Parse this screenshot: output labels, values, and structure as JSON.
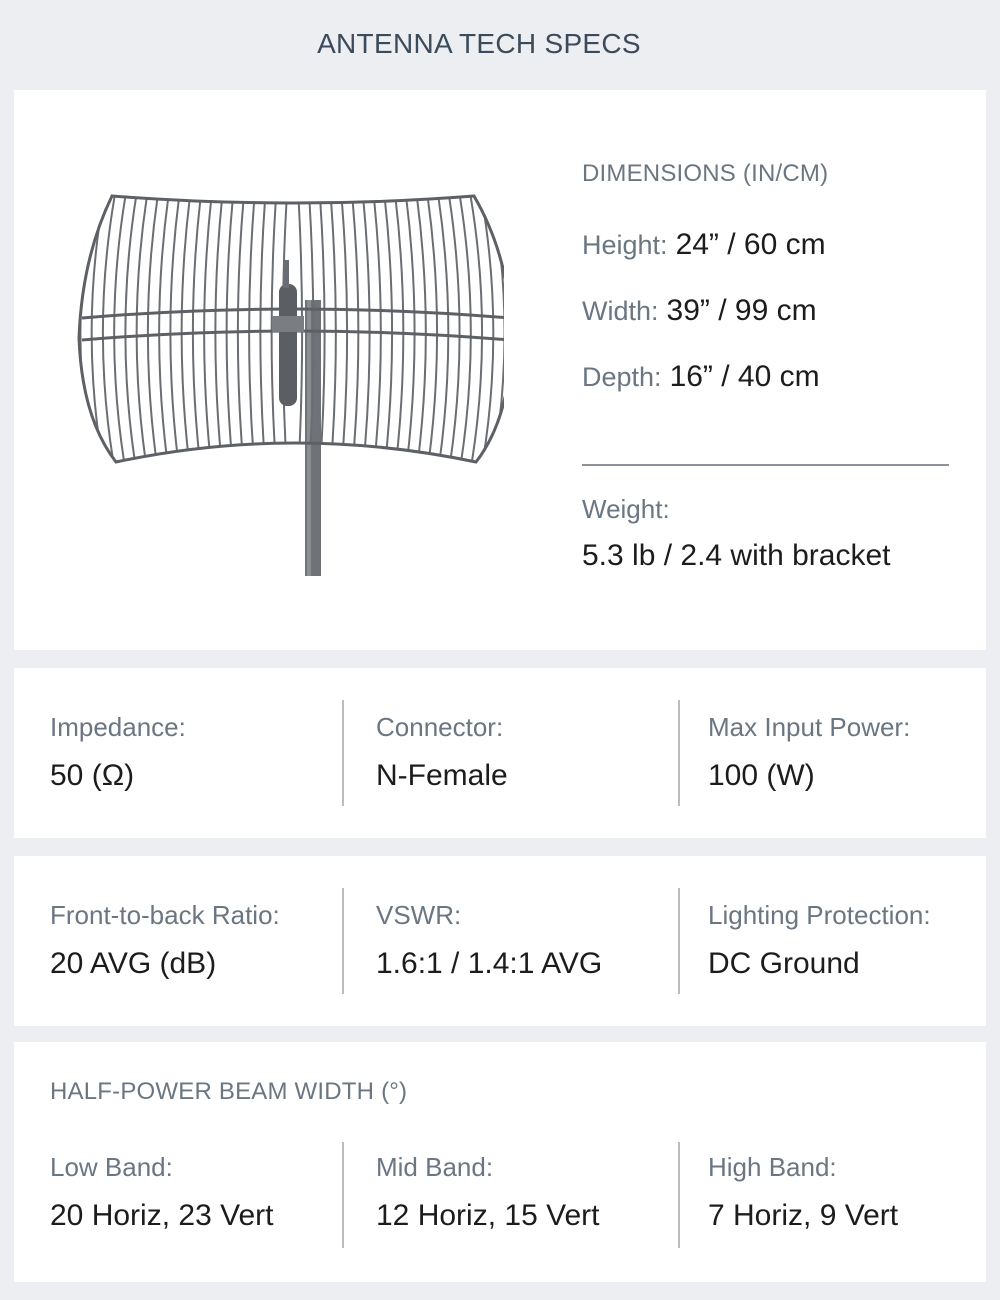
{
  "title": "ANTENNA TECH SPECS",
  "dimensions": {
    "heading": "DIMENSIONS (IN/CM)",
    "rows": [
      {
        "label": "Height:",
        "value": "24” / 60 cm"
      },
      {
        "label": "Width:",
        "value": "39” / 99 cm"
      },
      {
        "label": "Depth:",
        "value": "16” / 40 cm"
      }
    ],
    "weight_label": "Weight:",
    "weight_value": "5.3 lb / 2.4 with bracket"
  },
  "specs_row1": [
    {
      "label": "Impedance:",
      "value": "50 (Ω)"
    },
    {
      "label": "Connector:",
      "value": "N-Female"
    },
    {
      "label": "Max Input Power:",
      "value": "100 (W)"
    }
  ],
  "specs_row2": [
    {
      "label": "Front-to-back Ratio:",
      "value": "20 AVG (dB)"
    },
    {
      "label": "VSWR:",
      "value": "1.6:1 / 1.4:1 AVG"
    },
    {
      "label": "Lighting Protection:",
      "value": "DC Ground"
    }
  ],
  "beam": {
    "heading": "HALF-POWER BEAM WIDTH (°)",
    "bands": [
      {
        "label": "Low Band:",
        "value": "20 Horiz, 23 Vert"
      },
      {
        "label": "Mid Band:",
        "value": "12 Horiz, 15 Vert"
      },
      {
        "label": "High Band:",
        "value": "7 Horiz, 9 Vert"
      }
    ]
  },
  "colors": {
    "background": "#eceef1",
    "card": "#ffffff",
    "heading": "#3c4b5c",
    "label": "#6b7683",
    "value": "#1c1c1c"
  }
}
